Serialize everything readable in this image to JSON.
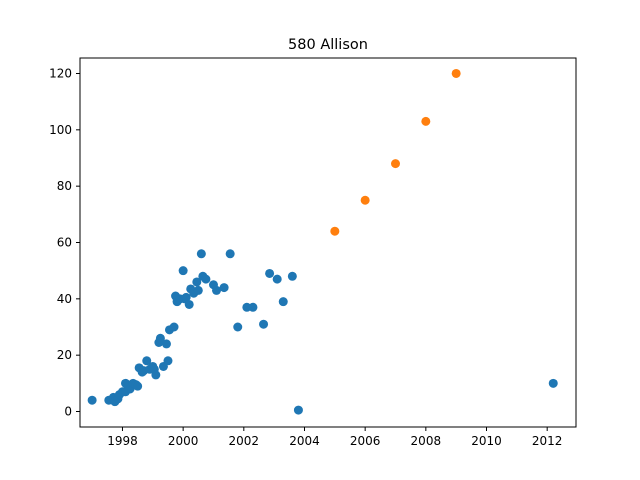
{
  "chart_data": {
    "type": "scatter",
    "title": "580 Allison",
    "xlabel": "",
    "ylabel": "",
    "xlim": [
      1996.6,
      2012.95
    ],
    "ylim": [
      -5.5,
      125.5
    ],
    "grid": false,
    "x_ticks": [
      1998,
      2000,
      2002,
      2004,
      2006,
      2008,
      2010,
      2012
    ],
    "y_ticks": [
      0,
      20,
      40,
      60,
      80,
      100,
      120
    ],
    "series": [
      {
        "color": "#1f77b4",
        "points": [
          [
            1997.0,
            4
          ],
          [
            1997.55,
            4
          ],
          [
            1997.7,
            5
          ],
          [
            1997.75,
            3.5
          ],
          [
            1997.85,
            4.5
          ],
          [
            1997.9,
            6
          ],
          [
            1998.0,
            7
          ],
          [
            1998.1,
            7
          ],
          [
            1998.1,
            10
          ],
          [
            1998.2,
            9
          ],
          [
            1998.25,
            8
          ],
          [
            1998.35,
            10
          ],
          [
            1998.45,
            9.5
          ],
          [
            1998.5,
            9
          ],
          [
            1998.55,
            15.5
          ],
          [
            1998.65,
            14
          ],
          [
            1998.7,
            14.5
          ],
          [
            1998.8,
            18
          ],
          [
            1998.9,
            15
          ],
          [
            1999.0,
            16
          ],
          [
            1999.05,
            15
          ],
          [
            1999.1,
            13
          ],
          [
            1999.2,
            24.5
          ],
          [
            1999.25,
            26
          ],
          [
            1999.35,
            16
          ],
          [
            1999.45,
            24
          ],
          [
            1999.5,
            18
          ],
          [
            1999.55,
            29
          ],
          [
            1999.7,
            30
          ],
          [
            1999.75,
            41
          ],
          [
            1999.8,
            39
          ],
          [
            1999.9,
            40
          ],
          [
            2000.0,
            50
          ],
          [
            2000.05,
            40
          ],
          [
            2000.1,
            40.5
          ],
          [
            2000.2,
            38
          ],
          [
            2000.25,
            43.5
          ],
          [
            2000.35,
            42
          ],
          [
            2000.45,
            46
          ],
          [
            2000.5,
            43
          ],
          [
            2000.6,
            56
          ],
          [
            2000.65,
            48
          ],
          [
            2000.75,
            47
          ],
          [
            2001.0,
            45
          ],
          [
            2001.1,
            43
          ],
          [
            2001.35,
            44
          ],
          [
            2001.55,
            56
          ],
          [
            2001.8,
            30
          ],
          [
            2002.1,
            37
          ],
          [
            2002.3,
            37
          ],
          [
            2002.65,
            31
          ],
          [
            2002.85,
            49
          ],
          [
            2003.1,
            47
          ],
          [
            2003.3,
            39
          ],
          [
            2003.6,
            48
          ],
          [
            2003.8,
            0.5
          ],
          [
            2012.2,
            10
          ]
        ]
      },
      {
        "color": "#ff7f0e",
        "points": [
          [
            2005,
            64
          ],
          [
            2006,
            75
          ],
          [
            2007,
            88
          ],
          [
            2008,
            103
          ],
          [
            2009,
            120
          ]
        ]
      }
    ]
  }
}
